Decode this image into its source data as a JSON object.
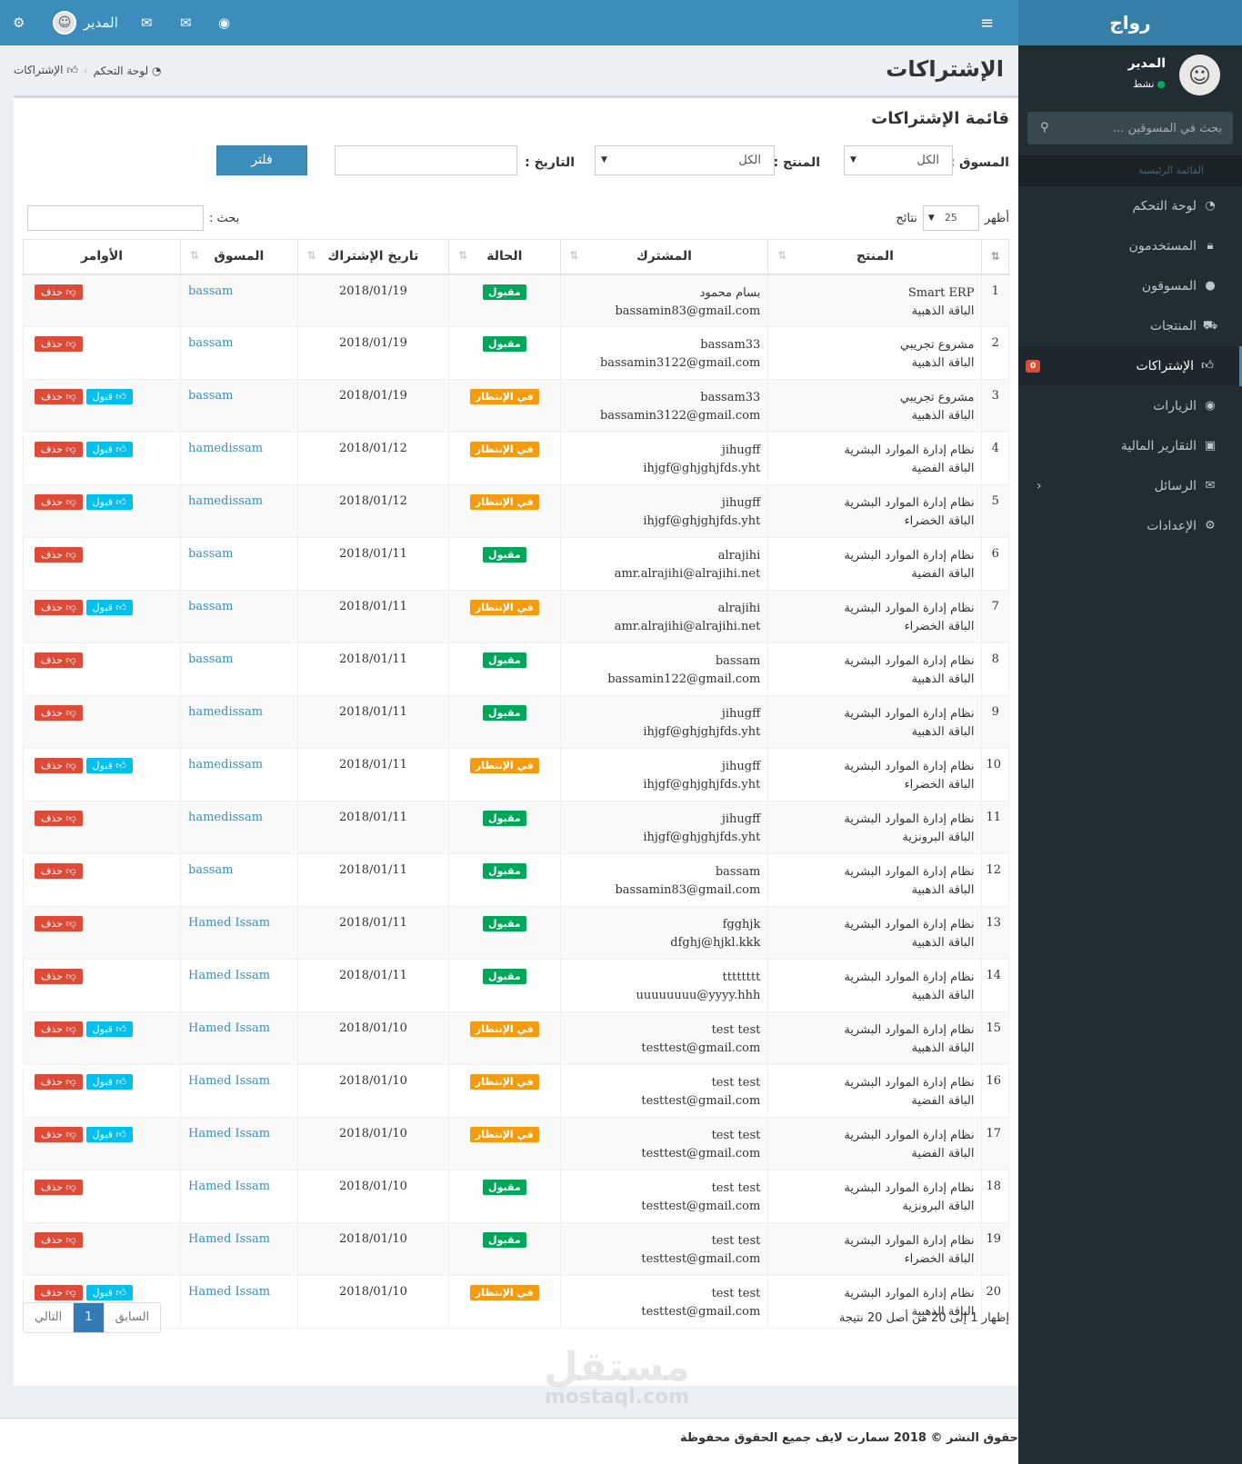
{
  "app": {
    "logo": "رواج"
  },
  "topbar": {
    "user_name": "المدير"
  },
  "sidebar": {
    "user_name": "المدير",
    "user_status": "نشط",
    "search_placeholder": "بحث في المسوقين ...",
    "header": "القائمة الرئيسية",
    "items": [
      {
        "label": "لوحة التحكم",
        "icon": "dashboard-icon"
      },
      {
        "label": "المستخدمون",
        "icon": "lock-icon"
      },
      {
        "label": "المسوقون",
        "icon": "user-icon"
      },
      {
        "label": "المنتجات",
        "icon": "cart-icon"
      },
      {
        "label": "الإشتراكات",
        "icon": "thumbs-up-icon",
        "badge": "0"
      },
      {
        "label": "الزيارات",
        "icon": "eye-icon"
      },
      {
        "label": "التقارير المالية",
        "icon": "money-icon"
      },
      {
        "label": "الرسائل",
        "icon": "envelope-icon"
      },
      {
        "label": "الإعدادات",
        "icon": "gears-icon"
      }
    ]
  },
  "page": {
    "title": "الإشتراكات",
    "breadcrumb": [
      "لوحة التحكم",
      "الإشتراكات"
    ]
  },
  "box": {
    "title": "قائمة الإشتراكات",
    "filters": {
      "marketer_label": "المسوق :",
      "marketer_value": "الكل",
      "product_label": "المنتج :",
      "product_value": "الكل",
      "date_label": "التاريخ :",
      "filter_button": "فلتر"
    },
    "length": {
      "show": "أظهر",
      "value": "25",
      "results": "نتائج"
    },
    "search_label": "بحث :",
    "columns": [
      "المنتج",
      "المشترك",
      "الحالة",
      "تاريخ الإشتراك",
      "المسوق",
      "الأوامر"
    ],
    "actions": {
      "accept": "قبول",
      "delete": "حذف"
    },
    "rows": [
      {
        "n": "1",
        "product": "Smart ERP",
        "pkg": "الباقة الذهبية",
        "sub": "بسام محمود",
        "email": "bassamin83@gmail.com",
        "status": "مقبول",
        "ok": true,
        "date": "2018/01/19",
        "mk": "bassam"
      },
      {
        "n": "2",
        "product": "مشروع تجريبي",
        "pkg": "الباقة الذهبية",
        "sub": "bassam33",
        "email": "bassamin3122@gmail.com",
        "status": "مقبول",
        "ok": true,
        "date": "2018/01/19",
        "mk": "bassam"
      },
      {
        "n": "3",
        "product": "مشروع تجريبي",
        "pkg": "الباقة الذهبية",
        "sub": "bassam33",
        "email": "bassamin3122@gmail.com",
        "status": "في الإنتظار",
        "ok": false,
        "date": "2018/01/19",
        "mk": "bassam"
      },
      {
        "n": "4",
        "product": "نظام إدارة الموارد البشرية",
        "pkg": "الباقة الفضية",
        "sub": "jihugff",
        "email": "ihjgf@ghjghjfds.yht",
        "status": "في الإنتظار",
        "ok": false,
        "date": "2018/01/12",
        "mk": "hamedissam"
      },
      {
        "n": "5",
        "product": "نظام إدارة الموارد البشرية",
        "pkg": "الباقة الخضراء",
        "sub": "jihugff",
        "email": "ihjgf@ghjghjfds.yht",
        "status": "في الإنتظار",
        "ok": false,
        "date": "2018/01/12",
        "mk": "hamedissam"
      },
      {
        "n": "6",
        "product": "نظام إدارة الموارد البشرية",
        "pkg": "الباقة الفضية",
        "sub": "alrajihi",
        "email": "amr.alrajihi@alrajihi.net",
        "status": "مقبول",
        "ok": true,
        "date": "2018/01/11",
        "mk": "bassam"
      },
      {
        "n": "7",
        "product": "نظام إدارة الموارد البشرية",
        "pkg": "الباقة الخضراء",
        "sub": "alrajihi",
        "email": "amr.alrajihi@alrajihi.net",
        "status": "في الإنتظار",
        "ok": false,
        "date": "2018/01/11",
        "mk": "bassam"
      },
      {
        "n": "8",
        "product": "نظام إدارة الموارد البشرية",
        "pkg": "الباقة الذهبية",
        "sub": "bassam",
        "email": "bassamin122@gmail.com",
        "status": "مقبول",
        "ok": true,
        "date": "2018/01/11",
        "mk": "bassam"
      },
      {
        "n": "9",
        "product": "نظام إدارة الموارد البشرية",
        "pkg": "الباقة الذهبية",
        "sub": "jihugff",
        "email": "ihjgf@ghjghjfds.yht",
        "status": "مقبول",
        "ok": true,
        "date": "2018/01/11",
        "mk": "hamedissam"
      },
      {
        "n": "10",
        "product": "نظام إدارة الموارد البشرية",
        "pkg": "الباقة الخضراء",
        "sub": "jihugff",
        "email": "ihjgf@ghjghjfds.yht",
        "status": "في الإنتظار",
        "ok": false,
        "date": "2018/01/11",
        "mk": "hamedissam"
      },
      {
        "n": "11",
        "product": "نظام إدارة الموارد البشرية",
        "pkg": "الباقة البرونزية",
        "sub": "jihugff",
        "email": "ihjgf@ghjghjfds.yht",
        "status": "مقبول",
        "ok": true,
        "date": "2018/01/11",
        "mk": "hamedissam"
      },
      {
        "n": "12",
        "product": "نظام إدارة الموارد البشرية",
        "pkg": "الباقة الذهبية",
        "sub": "bassam",
        "email": "bassamin83@gmail.com",
        "status": "مقبول",
        "ok": true,
        "date": "2018/01/11",
        "mk": "bassam"
      },
      {
        "n": "13",
        "product": "نظام إدارة الموارد البشرية",
        "pkg": "الباقة الذهبية",
        "sub": "fgghjk",
        "email": "dfghj@hjkl.kkk",
        "status": "مقبول",
        "ok": true,
        "date": "2018/01/11",
        "mk": "Hamed Issam"
      },
      {
        "n": "14",
        "product": "نظام إدارة الموارد البشرية",
        "pkg": "الباقة الذهبية",
        "sub": "tttttttt",
        "email": "uuuuuuuu@yyyy.hhh",
        "status": "مقبول",
        "ok": true,
        "date": "2018/01/11",
        "mk": "Hamed Issam"
      },
      {
        "n": "15",
        "product": "نظام إدارة الموارد البشرية",
        "pkg": "الباقة الذهبية",
        "sub": "test test",
        "email": "testtest@gmail.com",
        "status": "في الإنتظار",
        "ok": false,
        "date": "2018/01/10",
        "mk": "Hamed Issam"
      },
      {
        "n": "16",
        "product": "نظام إدارة الموارد البشرية",
        "pkg": "الباقة الفضية",
        "sub": "test test",
        "email": "testtest@gmail.com",
        "status": "في الإنتظار",
        "ok": false,
        "date": "2018/01/10",
        "mk": "Hamed Issam"
      },
      {
        "n": "17",
        "product": "نظام إدارة الموارد البشرية",
        "pkg": "الباقة الفضية",
        "sub": "test test",
        "email": "testtest@gmail.com",
        "status": "في الإنتظار",
        "ok": false,
        "date": "2018/01/10",
        "mk": "Hamed Issam"
      },
      {
        "n": "18",
        "product": "نظام إدارة الموارد البشرية",
        "pkg": "الباقة البرونزية",
        "sub": "test test",
        "email": "testtest@gmail.com",
        "status": "مقبول",
        "ok": true,
        "date": "2018/01/10",
        "mk": "Hamed Issam"
      },
      {
        "n": "19",
        "product": "نظام إدارة الموارد البشرية",
        "pkg": "الباقة الخضراء",
        "sub": "test test",
        "email": "testtest@gmail.com",
        "status": "مقبول",
        "ok": true,
        "date": "2018/01/10",
        "mk": "Hamed Issam"
      },
      {
        "n": "20",
        "product": "نظام إدارة الموارد البشرية",
        "pkg": "الباقة الذهبية",
        "sub": "test test",
        "email": "testtest@gmail.com",
        "status": "في الإنتظار",
        "ok": false,
        "date": "2018/01/10",
        "mk": "Hamed Issam"
      }
    ],
    "info": "إظهار 1 إلى 20 من أصل 20 نتيجة",
    "pager": {
      "prev": "السابق",
      "current": "1",
      "next": "التالي"
    }
  },
  "footer": {
    "text": "حقوق النشر © 2018 سمارت لايف جميع الحقوق محفوظة"
  },
  "watermark": {
    "line1": "مستقل",
    "line2": "mostaql.com"
  },
  "colors": {
    "primary": "#3c8dbc",
    "success": "#00a65a",
    "warning": "#f39c12",
    "danger": "#dd4b39",
    "info": "#00c0ef",
    "sidebar": "#222d32"
  }
}
